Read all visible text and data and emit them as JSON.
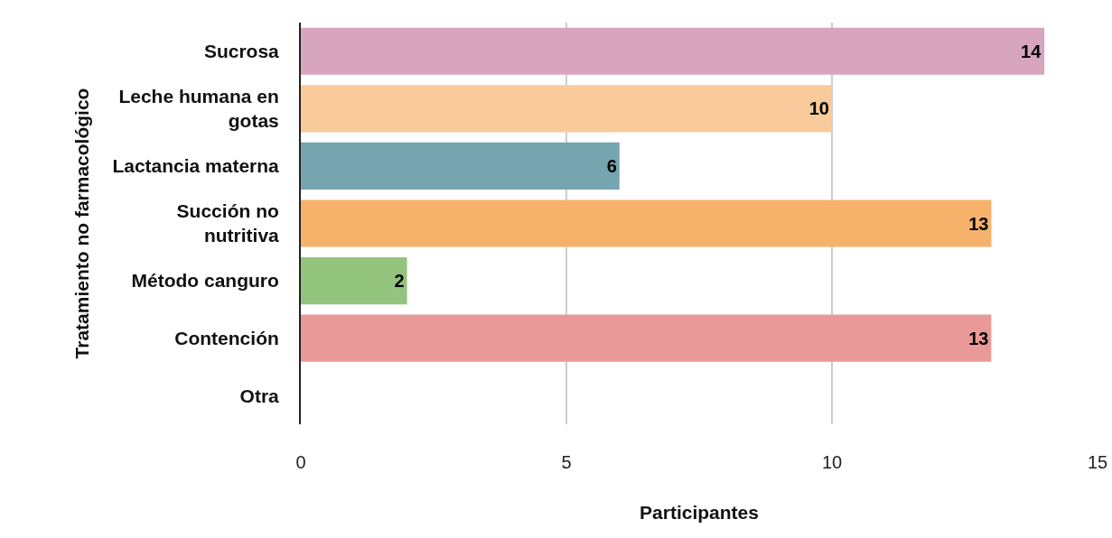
{
  "chart_data": {
    "type": "bar",
    "orientation": "horizontal",
    "xlabel": "Participantes",
    "ylabel": "Tratamiento no farmacológico",
    "categories": [
      "Sucrosa",
      "Leche humana en gotas",
      "Lactancia materna",
      "Succión no nutritiva",
      "Método canguro",
      "Contención",
      "Otra"
    ],
    "values": [
      14,
      10,
      6,
      13,
      2,
      13,
      0
    ],
    "colors": [
      "#d7a5bd",
      "#f8ca9c",
      "#76a5af",
      "#f6b26b",
      "#93c47d",
      "#ea9999",
      "#cccccc"
    ],
    "value_labels": [
      "14",
      "10",
      "6",
      "13",
      "2",
      "13",
      null
    ],
    "xlim": [
      0,
      15
    ],
    "xticks": [
      0,
      5,
      10,
      15
    ],
    "grid": "x"
  }
}
